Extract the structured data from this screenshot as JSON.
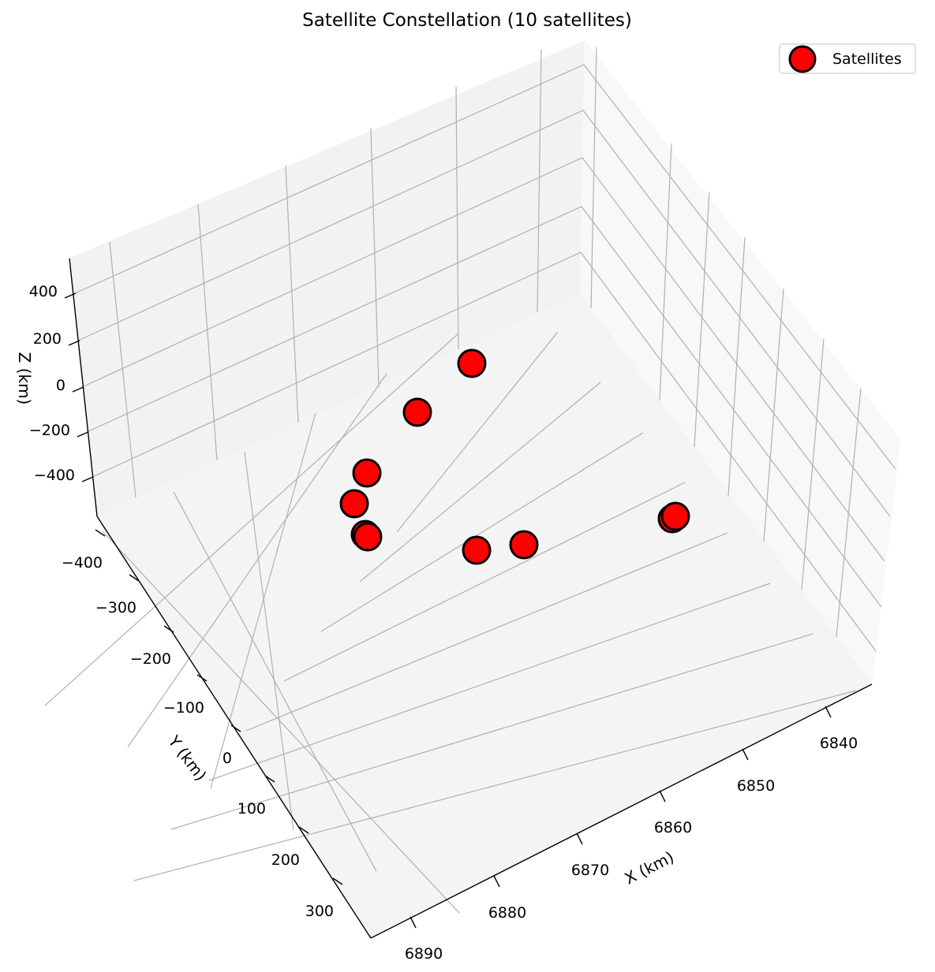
{
  "chart_data": {
    "type": "scatter",
    "projection": "3d",
    "title": "Satellite Constellation (10 satellites)",
    "xlabel": "X (km)",
    "ylabel": "Y (km)",
    "zlabel": "Z (km)",
    "x_ticks": [
      "6840",
      "6850",
      "6860",
      "6870",
      "6880",
      "6890"
    ],
    "y_ticks": [
      "−400",
      "−300",
      "−200",
      "−100",
      "0",
      "100",
      "200",
      "300"
    ],
    "z_ticks": [
      "400",
      "200",
      "0",
      "−200",
      "−400"
    ],
    "grid": true,
    "legend": {
      "position": "top-right",
      "entries": [
        "Satellites"
      ]
    },
    "colors": {
      "marker_fill": "#ff0000",
      "marker_edge": "#000000",
      "pane": "#f2f2f2",
      "grid": "#b0b0b0"
    },
    "series": [
      {
        "name": "Satellites",
        "points": [
          {
            "x": 6843.8,
            "y": -400,
            "z": 0
          },
          {
            "x": 6854.2,
            "y": -400,
            "z": 0
          },
          {
            "x": 6869.6,
            "y": -297,
            "z": 0
          },
          {
            "x": 6876.7,
            "y": -187,
            "z": 0
          },
          {
            "x": 6882.8,
            "y": -98,
            "z": 0
          },
          {
            "x": 6880.7,
            "y": -48,
            "z": 0
          },
          {
            "x": 6876.6,
            "y": 40,
            "z": 0
          },
          {
            "x": 6860.9,
            "y": 18,
            "z": 0
          },
          {
            "x": 6839.8,
            "y": 62,
            "z": 0
          },
          {
            "x": 6839.1,
            "y": 64,
            "z": 0
          }
        ]
      }
    ]
  }
}
